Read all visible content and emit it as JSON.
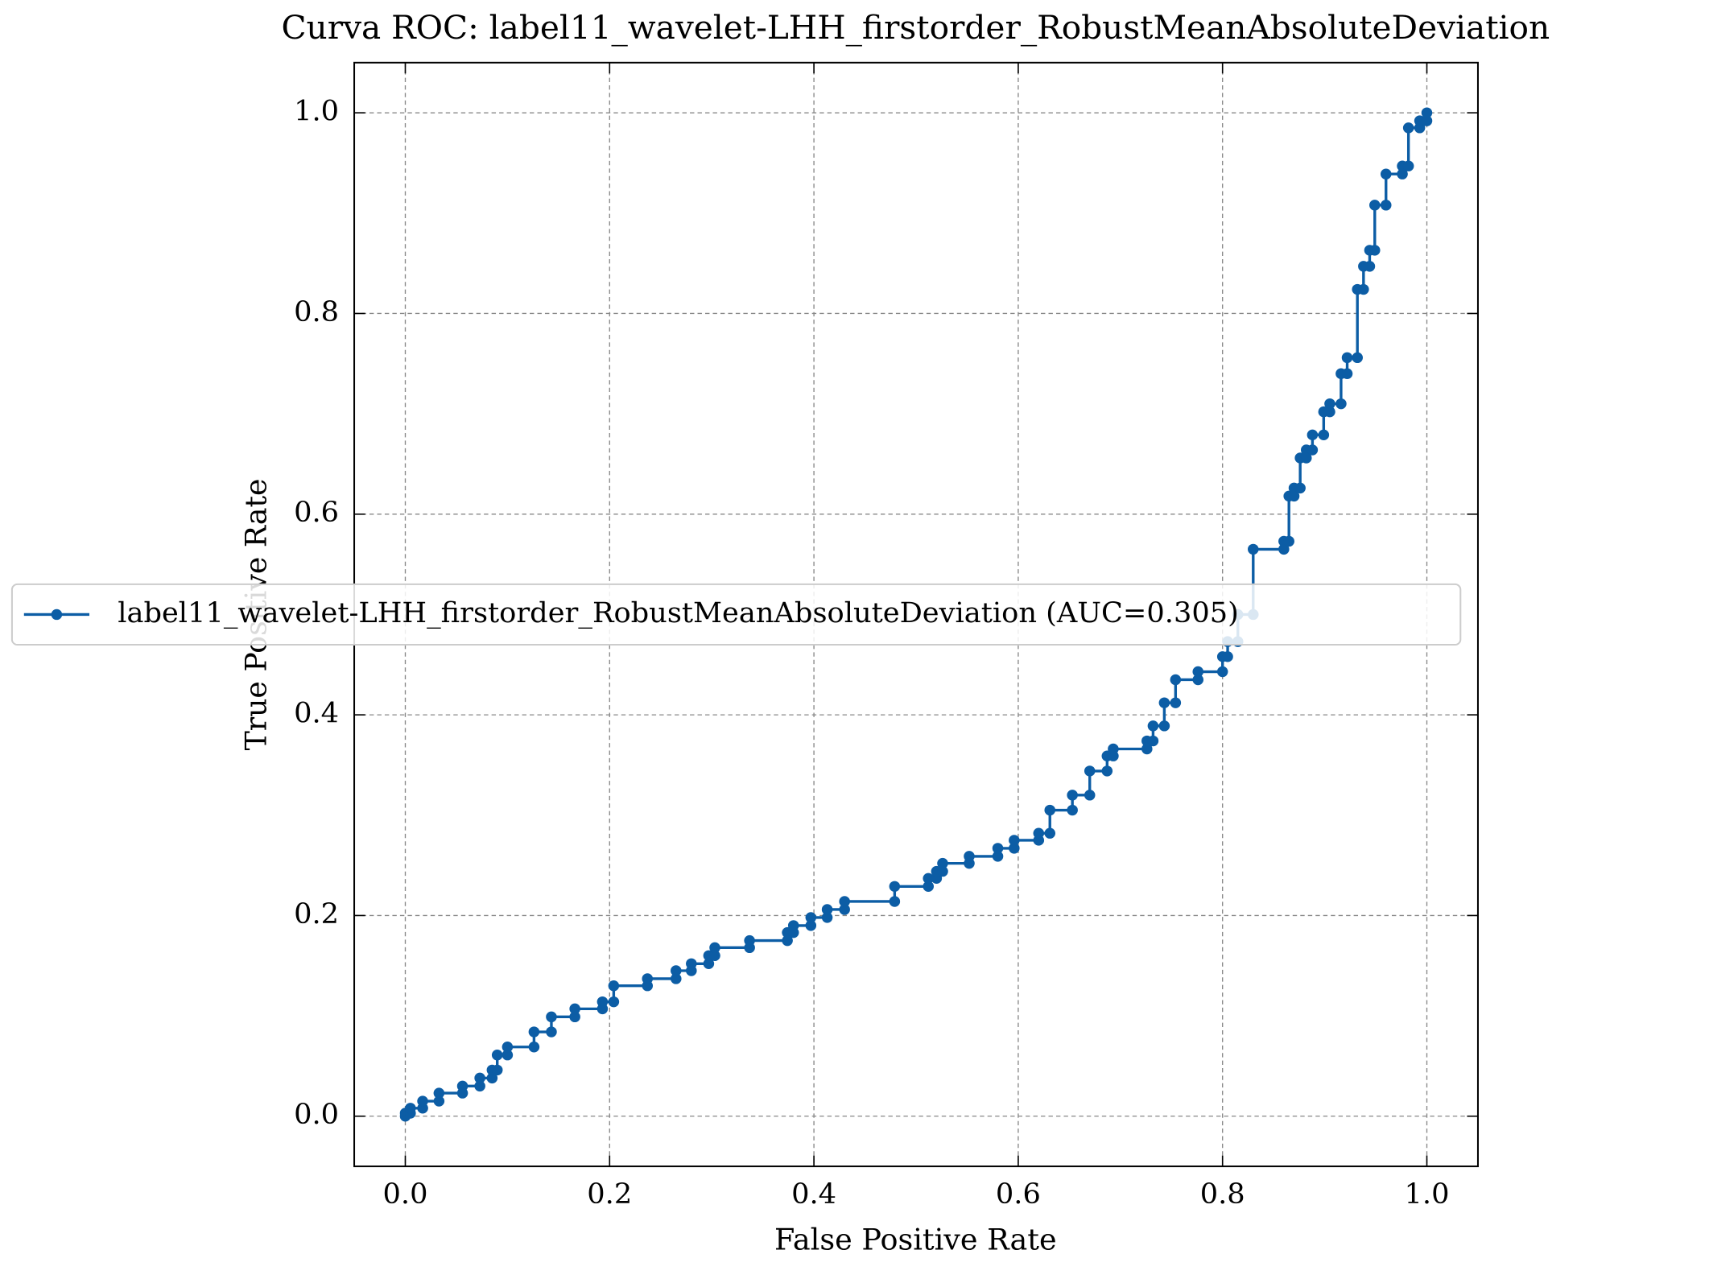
{
  "chart_data": {
    "type": "line",
    "title": "Curva ROC: label11_wavelet-LHH_firstorder_RobustMeanAbsoluteDeviation",
    "xlabel": "False Positive Rate",
    "ylabel": "True Positive Rate",
    "x": [
      0,
      0,
      0.005,
      0.005,
      0.017,
      0.017,
      0.033,
      0.033,
      0.056,
      0.056,
      0.073,
      0.073,
      0.085,
      0.085,
      0.09,
      0.09,
      0.1,
      0.1,
      0.126,
      0.126,
      0.143,
      0.143,
      0.166,
      0.166,
      0.193,
      0.193,
      0.204,
      0.204,
      0.237,
      0.237,
      0.265,
      0.265,
      0.28,
      0.28,
      0.297,
      0.297,
      0.303,
      0.303,
      0.337,
      0.337,
      0.374,
      0.374,
      0.38,
      0.38,
      0.397,
      0.397,
      0.413,
      0.413,
      0.43,
      0.43,
      0.479,
      0.479,
      0.512,
      0.512,
      0.52,
      0.52,
      0.526,
      0.526,
      0.552,
      0.552,
      0.58,
      0.58,
      0.596,
      0.596,
      0.62,
      0.62,
      0.631,
      0.631,
      0.653,
      0.653,
      0.67,
      0.67,
      0.687,
      0.687,
      0.693,
      0.693,
      0.726,
      0.726,
      0.732,
      0.732,
      0.743,
      0.743,
      0.754,
      0.754,
      0.776,
      0.776,
      0.8,
      0.8,
      0.805,
      0.805,
      0.815,
      0.815,
      0.83,
      0.83,
      0.86,
      0.86,
      0.865,
      0.865,
      0.87,
      0.87,
      0.876,
      0.876,
      0.882,
      0.882,
      0.888,
      0.888,
      0.899,
      0.899,
      0.905,
      0.905,
      0.916,
      0.916,
      0.922,
      0.922,
      0.932,
      0.932,
      0.938,
      0.938,
      0.944,
      0.944,
      0.949,
      0.949,
      0.96,
      0.96,
      0.976,
      0.976,
      0.982,
      0.982,
      0.993,
      0.993,
      1,
      1
    ],
    "series": [
      {
        "name": "label11_wavelet-LHH_firstorder_RobustMeanAbsoluteDeviation (AUC=0.305)",
        "color": "#0c5da5",
        "values": [
          0,
          0.003,
          0.003,
          0.008,
          0.008,
          0.015,
          0.015,
          0.023,
          0.023,
          0.03,
          0.03,
          0.038,
          0.038,
          0.046,
          0.046,
          0.061,
          0.061,
          0.069,
          0.069,
          0.084,
          0.084,
          0.099,
          0.099,
          0.107,
          0.107,
          0.114,
          0.114,
          0.13,
          0.13,
          0.137,
          0.137,
          0.145,
          0.145,
          0.152,
          0.152,
          0.16,
          0.16,
          0.168,
          0.168,
          0.175,
          0.175,
          0.183,
          0.183,
          0.19,
          0.19,
          0.198,
          0.198,
          0.206,
          0.206,
          0.214,
          0.214,
          0.229,
          0.229,
          0.237,
          0.237,
          0.244,
          0.244,
          0.252,
          0.252,
          0.259,
          0.259,
          0.267,
          0.267,
          0.275,
          0.275,
          0.282,
          0.282,
          0.305,
          0.305,
          0.32,
          0.32,
          0.344,
          0.344,
          0.359,
          0.359,
          0.366,
          0.366,
          0.374,
          0.374,
          0.389,
          0.389,
          0.412,
          0.412,
          0.435,
          0.435,
          0.443,
          0.443,
          0.458,
          0.458,
          0.473,
          0.473,
          0.5,
          0.5,
          0.565,
          0.565,
          0.573,
          0.573,
          0.618,
          0.618,
          0.626,
          0.626,
          0.656,
          0.656,
          0.664,
          0.664,
          0.679,
          0.679,
          0.702,
          0.702,
          0.71,
          0.71,
          0.74,
          0.74,
          0.756,
          0.756,
          0.824,
          0.824,
          0.847,
          0.847,
          0.863,
          0.863,
          0.908,
          0.908,
          0.939,
          0.939,
          0.947,
          0.947,
          0.985,
          0.985,
          0.992,
          0.992,
          1
        ]
      }
    ],
    "xlim": [
      -0.05,
      1.05
    ],
    "ylim": [
      -0.05,
      1.05
    ],
    "xticks": [
      {
        "value": 0,
        "label": "0.0"
      },
      0.2,
      0.4,
      0.6,
      0.8,
      {
        "value": 1,
        "label": "1.0"
      }
    ],
    "yticks": [
      {
        "value": 0,
        "label": "0.0"
      },
      0.2,
      0.4,
      0.6,
      0.8,
      {
        "value": 1,
        "label": "1.0"
      }
    ],
    "grid": true
  }
}
